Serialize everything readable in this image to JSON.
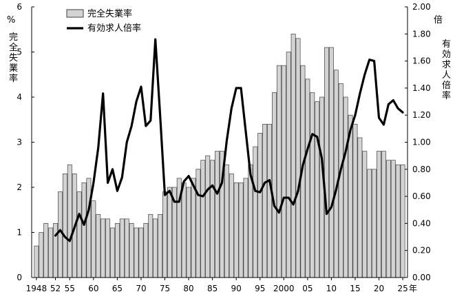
{
  "chart_data": {
    "type": "bar+line",
    "title": "",
    "left_axis": {
      "unit": "%",
      "label": "完全失業率",
      "ylim": [
        0,
        6
      ],
      "ticks": [
        "0",
        "1",
        "2",
        "3",
        "4",
        "5",
        "6"
      ]
    },
    "right_axis": {
      "unit": "倍",
      "label": "有効求人倍率",
      "ylim": [
        0,
        2
      ],
      "ticks": [
        "0.00",
        "0.20",
        "0.40",
        "0.60",
        "0.80",
        "1.00",
        "1.20",
        "1.40",
        "1.60",
        "1.80",
        "2.00"
      ]
    },
    "x_axis": {
      "unit": "年",
      "tick_labels": [
        {
          "year": 1948,
          "label": "1948"
        },
        {
          "year": 1952,
          "label": "52"
        },
        {
          "year": 1955,
          "label": "55"
        },
        {
          "year": 1960,
          "label": "60"
        },
        {
          "year": 1965,
          "label": "65"
        },
        {
          "year": 1970,
          "label": "70"
        },
        {
          "year": 1975,
          "label": "75"
        },
        {
          "year": 1980,
          "label": "80"
        },
        {
          "year": 1985,
          "label": "85"
        },
        {
          "year": 1990,
          "label": "90"
        },
        {
          "year": 1995,
          "label": "95"
        },
        {
          "year": 2000,
          "label": "2000"
        },
        {
          "year": 2005,
          "label": "05"
        },
        {
          "year": 2010,
          "label": "10"
        },
        {
          "year": 2015,
          "label": "15"
        },
        {
          "year": 2020,
          "label": "20"
        },
        {
          "year": 2025,
          "label": "25"
        }
      ],
      "xlim": [
        1947,
        2026
      ]
    },
    "legend": {
      "placement": "top-left",
      "entries": [
        {
          "name": "完全失業率",
          "kind": "bar"
        },
        {
          "name": "有効求人倍率",
          "kind": "line"
        }
      ]
    },
    "series": [
      {
        "name": "完全失業率",
        "type": "bar",
        "axis": "left",
        "color": "#d3d3d3",
        "edge": "#404040",
        "x": [
          1948,
          1949,
          1950,
          1951,
          1952,
          1953,
          1954,
          1955,
          1956,
          1957,
          1958,
          1959,
          1960,
          1961,
          1962,
          1963,
          1964,
          1965,
          1966,
          1967,
          1968,
          1969,
          1970,
          1971,
          1972,
          1973,
          1974,
          1975,
          1976,
          1977,
          1978,
          1979,
          1980,
          1981,
          1982,
          1983,
          1984,
          1985,
          1986,
          1987,
          1988,
          1989,
          1990,
          1991,
          1992,
          1993,
          1994,
          1995,
          1996,
          1997,
          1998,
          1999,
          2000,
          2001,
          2002,
          2003,
          2004,
          2005,
          2006,
          2007,
          2008,
          2009,
          2010,
          2011,
          2012,
          2013,
          2014,
          2015,
          2016,
          2017,
          2018,
          2019,
          2020,
          2021,
          2022,
          2023,
          2024,
          2025
        ],
        "values": [
          0.7,
          1.0,
          1.2,
          1.1,
          1.2,
          1.9,
          2.3,
          2.5,
          2.3,
          1.9,
          2.1,
          2.2,
          1.7,
          1.4,
          1.3,
          1.3,
          1.1,
          1.2,
          1.3,
          1.3,
          1.2,
          1.1,
          1.1,
          1.2,
          1.4,
          1.3,
          1.4,
          1.9,
          2.0,
          2.0,
          2.2,
          2.1,
          2.0,
          2.2,
          2.4,
          2.6,
          2.7,
          2.6,
          2.8,
          2.8,
          2.5,
          2.3,
          2.1,
          2.1,
          2.2,
          2.5,
          2.9,
          3.2,
          3.4,
          3.4,
          4.1,
          4.7,
          4.7,
          5.0,
          5.4,
          5.3,
          4.7,
          4.4,
          4.1,
          3.9,
          4.0,
          5.1,
          5.1,
          4.6,
          4.3,
          4.0,
          3.6,
          3.4,
          3.1,
          2.8,
          2.4,
          2.4,
          2.8,
          2.8,
          2.6,
          2.6,
          2.5,
          2.5
        ]
      },
      {
        "name": "有効求人倍率",
        "type": "line",
        "axis": "right",
        "color": "#000000",
        "x": [
          1952,
          1953,
          1954,
          1955,
          1956,
          1957,
          1958,
          1959,
          1960,
          1961,
          1962,
          1963,
          1964,
          1965,
          1966,
          1967,
          1968,
          1969,
          1970,
          1971,
          1972,
          1973,
          1974,
          1975,
          1976,
          1977,
          1978,
          1979,
          1980,
          1981,
          1982,
          1983,
          1984,
          1985,
          1986,
          1987,
          1988,
          1989,
          1990,
          1991,
          1992,
          1993,
          1994,
          1995,
          1996,
          1997,
          1998,
          1999,
          2000,
          2001,
          2002,
          2003,
          2004,
          2005,
          2006,
          2007,
          2008,
          2009,
          2010,
          2011,
          2012,
          2013,
          2014,
          2015,
          2016,
          2017,
          2018,
          2019,
          2020,
          2021,
          2022,
          2023,
          2024,
          2025
        ],
        "values": [
          0.31,
          0.35,
          0.3,
          0.27,
          0.37,
          0.47,
          0.39,
          0.5,
          0.7,
          0.96,
          1.36,
          0.7,
          0.8,
          0.64,
          0.74,
          1.0,
          1.12,
          1.3,
          1.41,
          1.12,
          1.16,
          1.76,
          1.2,
          0.61,
          0.64,
          0.56,
          0.56,
          0.71,
          0.75,
          0.68,
          0.61,
          0.6,
          0.65,
          0.68,
          0.62,
          0.7,
          1.01,
          1.25,
          1.4,
          1.4,
          1.08,
          0.76,
          0.64,
          0.63,
          0.7,
          0.72,
          0.53,
          0.48,
          0.59,
          0.59,
          0.54,
          0.64,
          0.83,
          0.95,
          1.06,
          1.04,
          0.88,
          0.47,
          0.52,
          0.65,
          0.8,
          0.93,
          1.09,
          1.2,
          1.36,
          1.5,
          1.61,
          1.6,
          1.18,
          1.13,
          1.28,
          1.31,
          1.25,
          1.22
        ]
      }
    ]
  }
}
